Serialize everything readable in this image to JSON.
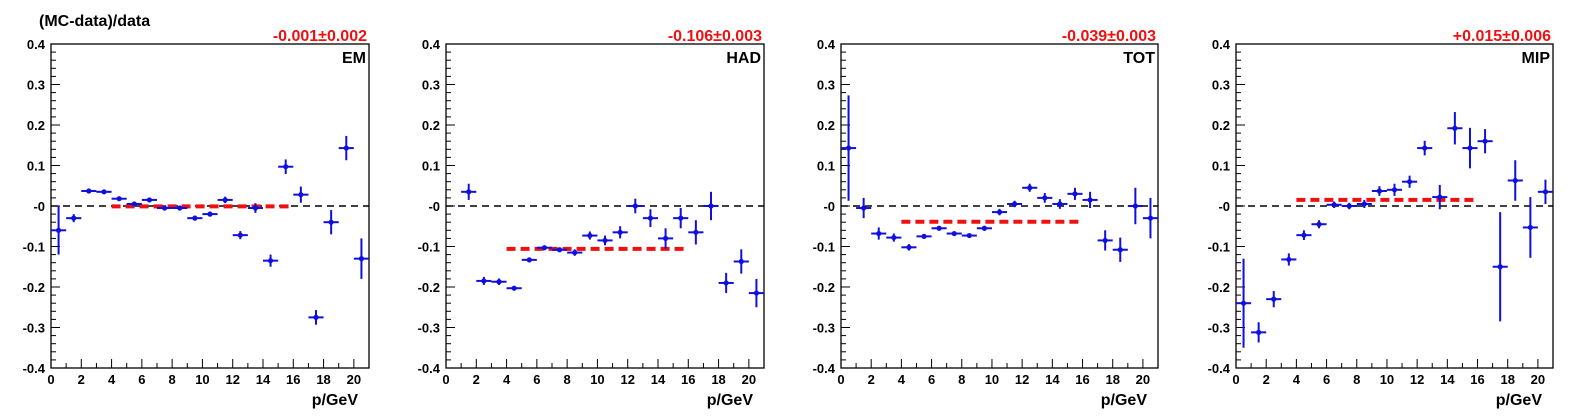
{
  "figure_ylabel": "(MC-data)/data",
  "colors": {
    "points": "#1010dd",
    "fit": "#ee1111",
    "zero_line": "#000000",
    "frame": "#000000"
  },
  "chart_data": [
    {
      "type": "scatter",
      "label": "EM",
      "fit_label": "-0.001±0.002",
      "fit_value": -0.001,
      "fit_range": [
        4,
        16
      ],
      "xlabel": "p/GeV",
      "xlim": [
        0,
        21
      ],
      "ylim": [
        -0.4,
        0.4
      ],
      "reference_line": 0,
      "x_ticks": [
        0,
        2,
        4,
        6,
        8,
        10,
        12,
        14,
        16,
        18,
        20
      ],
      "y_ticks": [
        -0.4,
        -0.3,
        -0.2,
        -0.1,
        0,
        0.1,
        0.2,
        0.3,
        0.4
      ],
      "y_tick_labels": [
        "-0.4",
        "-0.3",
        "-0.2",
        "-0.1",
        "-0",
        "0.1",
        "0.2",
        "0.3",
        "0.4"
      ],
      "points": [
        {
          "x": 0.5,
          "y": -0.06,
          "err": 0.06
        },
        {
          "x": 1.5,
          "y": -0.03,
          "err": 0.01
        },
        {
          "x": 2.5,
          "y": 0.037,
          "err": 0.005
        },
        {
          "x": 3.5,
          "y": 0.035,
          "err": 0.005
        },
        {
          "x": 4.5,
          "y": 0.018,
          "err": 0.005
        },
        {
          "x": 5.5,
          "y": 0.005,
          "err": 0.005
        },
        {
          "x": 6.5,
          "y": 0.015,
          "err": 0.005
        },
        {
          "x": 7.5,
          "y": -0.005,
          "err": 0.005
        },
        {
          "x": 8.5,
          "y": -0.005,
          "err": 0.005
        },
        {
          "x": 9.5,
          "y": -0.03,
          "err": 0.006
        },
        {
          "x": 10.5,
          "y": -0.02,
          "err": 0.006
        },
        {
          "x": 11.5,
          "y": 0.015,
          "err": 0.008
        },
        {
          "x": 12.5,
          "y": -0.072,
          "err": 0.01
        },
        {
          "x": 13.5,
          "y": -0.005,
          "err": 0.012
        },
        {
          "x": 14.5,
          "y": -0.135,
          "err": 0.015
        },
        {
          "x": 15.5,
          "y": 0.097,
          "err": 0.018
        },
        {
          "x": 16.5,
          "y": 0.028,
          "err": 0.02
        },
        {
          "x": 17.5,
          "y": -0.275,
          "err": 0.018
        },
        {
          "x": 18.5,
          "y": -0.04,
          "err": 0.03
        },
        {
          "x": 19.5,
          "y": 0.143,
          "err": 0.03
        },
        {
          "x": 20.5,
          "y": -0.13,
          "err": 0.05
        }
      ]
    },
    {
      "type": "scatter",
      "label": "HAD",
      "fit_label": "-0.106±0.003",
      "fit_value": -0.106,
      "fit_range": [
        4,
        16
      ],
      "xlabel": "p/GeV",
      "xlim": [
        0,
        21
      ],
      "ylim": [
        -0.4,
        0.4
      ],
      "reference_line": 0,
      "x_ticks": [
        0,
        2,
        4,
        6,
        8,
        10,
        12,
        14,
        16,
        18,
        20
      ],
      "y_ticks": [
        -0.4,
        -0.3,
        -0.2,
        -0.1,
        0,
        0.1,
        0.2,
        0.3,
        0.4
      ],
      "y_tick_labels": [
        "-0.4",
        "-0.3",
        "-0.2",
        "-0.1",
        "-0",
        "0.1",
        "0.2",
        "0.3",
        "0.4"
      ],
      "points": [
        {
          "x": 1.5,
          "y": 0.035,
          "err": 0.02
        },
        {
          "x": 2.5,
          "y": -0.185,
          "err": 0.01
        },
        {
          "x": 3.5,
          "y": -0.187,
          "err": 0.008
        },
        {
          "x": 4.5,
          "y": -0.203,
          "err": 0.005
        },
        {
          "x": 5.5,
          "y": -0.133,
          "err": 0.005
        },
        {
          "x": 6.5,
          "y": -0.103,
          "err": 0.005
        },
        {
          "x": 7.5,
          "y": -0.108,
          "err": 0.005
        },
        {
          "x": 8.5,
          "y": -0.115,
          "err": 0.008
        },
        {
          "x": 9.5,
          "y": -0.073,
          "err": 0.01
        },
        {
          "x": 10.5,
          "y": -0.085,
          "err": 0.012
        },
        {
          "x": 11.5,
          "y": -0.065,
          "err": 0.015
        },
        {
          "x": 12.5,
          "y": 0.0,
          "err": 0.018
        },
        {
          "x": 13.5,
          "y": -0.03,
          "err": 0.022
        },
        {
          "x": 14.5,
          "y": -0.08,
          "err": 0.025
        },
        {
          "x": 15.5,
          "y": -0.03,
          "err": 0.025
        },
        {
          "x": 16.5,
          "y": -0.065,
          "err": 0.03
        },
        {
          "x": 17.5,
          "y": 0.0,
          "err": 0.035
        },
        {
          "x": 18.5,
          "y": -0.19,
          "err": 0.025
        },
        {
          "x": 19.5,
          "y": -0.137,
          "err": 0.03
        },
        {
          "x": 20.5,
          "y": -0.215,
          "err": 0.035
        }
      ]
    },
    {
      "type": "scatter",
      "label": "TOT",
      "fit_label": "-0.039±0.003",
      "fit_value": -0.039,
      "fit_range": [
        4,
        16
      ],
      "xlabel": "p/GeV",
      "xlim": [
        0,
        21
      ],
      "ylim": [
        -0.4,
        0.4
      ],
      "reference_line": 0,
      "x_ticks": [
        0,
        2,
        4,
        6,
        8,
        10,
        12,
        14,
        16,
        18,
        20
      ],
      "y_ticks": [
        -0.4,
        -0.3,
        -0.2,
        -0.1,
        0,
        0.1,
        0.2,
        0.3,
        0.4
      ],
      "y_tick_labels": [
        "-0.4",
        "-0.3",
        "-0.2",
        "-0.1",
        "-0",
        "0.1",
        "0.2",
        "0.3",
        "0.4"
      ],
      "points": [
        {
          "x": 0.5,
          "y": 0.143,
          "err": 0.13
        },
        {
          "x": 1.5,
          "y": -0.005,
          "err": 0.025
        },
        {
          "x": 2.5,
          "y": -0.068,
          "err": 0.015
        },
        {
          "x": 3.5,
          "y": -0.078,
          "err": 0.01
        },
        {
          "x": 4.5,
          "y": -0.102,
          "err": 0.008
        },
        {
          "x": 5.5,
          "y": -0.075,
          "err": 0.005
        },
        {
          "x": 6.5,
          "y": -0.055,
          "err": 0.005
        },
        {
          "x": 7.5,
          "y": -0.068,
          "err": 0.005
        },
        {
          "x": 8.5,
          "y": -0.073,
          "err": 0.005
        },
        {
          "x": 9.5,
          "y": -0.055,
          "err": 0.006
        },
        {
          "x": 10.5,
          "y": -0.015,
          "err": 0.008
        },
        {
          "x": 11.5,
          "y": 0.005,
          "err": 0.008
        },
        {
          "x": 12.5,
          "y": 0.045,
          "err": 0.01
        },
        {
          "x": 13.5,
          "y": 0.02,
          "err": 0.012
        },
        {
          "x": 14.5,
          "y": 0.005,
          "err": 0.012
        },
        {
          "x": 15.5,
          "y": 0.03,
          "err": 0.015
        },
        {
          "x": 16.5,
          "y": 0.015,
          "err": 0.02
        },
        {
          "x": 17.5,
          "y": -0.085,
          "err": 0.025
        },
        {
          "x": 18.5,
          "y": -0.108,
          "err": 0.03
        },
        {
          "x": 19.5,
          "y": 0.0,
          "err": 0.045
        },
        {
          "x": 20.5,
          "y": -0.03,
          "err": 0.05
        }
      ]
    },
    {
      "type": "scatter",
      "label": "MIP",
      "fit_label": "+0.015±0.006",
      "fit_value": 0.015,
      "fit_range": [
        4,
        16
      ],
      "xlabel": "p/GeV",
      "xlim": [
        0,
        21
      ],
      "ylim": [
        -0.4,
        0.4
      ],
      "reference_line": 0,
      "x_ticks": [
        0,
        2,
        4,
        6,
        8,
        10,
        12,
        14,
        16,
        18,
        20
      ],
      "y_ticks": [
        -0.4,
        -0.3,
        -0.2,
        -0.1,
        0,
        0.1,
        0.2,
        0.3,
        0.4
      ],
      "y_tick_labels": [
        "-0.4",
        "-0.3",
        "-0.2",
        "-0.1",
        "-0",
        "0.1",
        "0.2",
        "0.3",
        "0.4"
      ],
      "points": [
        {
          "x": 0.5,
          "y": -0.24,
          "err": 0.11
        },
        {
          "x": 1.5,
          "y": -0.312,
          "err": 0.025
        },
        {
          "x": 2.5,
          "y": -0.23,
          "err": 0.02
        },
        {
          "x": 3.5,
          "y": -0.132,
          "err": 0.015
        },
        {
          "x": 4.5,
          "y": -0.072,
          "err": 0.012
        },
        {
          "x": 5.5,
          "y": -0.045,
          "err": 0.01
        },
        {
          "x": 6.5,
          "y": 0.003,
          "err": 0.008
        },
        {
          "x": 7.5,
          "y": 0.0,
          "err": 0.008
        },
        {
          "x": 8.5,
          "y": 0.005,
          "err": 0.01
        },
        {
          "x": 9.5,
          "y": 0.037,
          "err": 0.012
        },
        {
          "x": 10.5,
          "y": 0.04,
          "err": 0.015
        },
        {
          "x": 11.5,
          "y": 0.06,
          "err": 0.015
        },
        {
          "x": 12.5,
          "y": 0.143,
          "err": 0.018
        },
        {
          "x": 13.5,
          "y": 0.022,
          "err": 0.03
        },
        {
          "x": 14.5,
          "y": 0.192,
          "err": 0.04
        },
        {
          "x": 15.5,
          "y": 0.143,
          "err": 0.05
        },
        {
          "x": 16.5,
          "y": 0.16,
          "err": 0.03
        },
        {
          "x": 17.5,
          "y": -0.15,
          "err": 0.135
        },
        {
          "x": 18.5,
          "y": 0.063,
          "err": 0.05
        },
        {
          "x": 19.5,
          "y": -0.053,
          "err": 0.075
        },
        {
          "x": 20.5,
          "y": 0.035,
          "err": 0.03
        }
      ]
    }
  ]
}
